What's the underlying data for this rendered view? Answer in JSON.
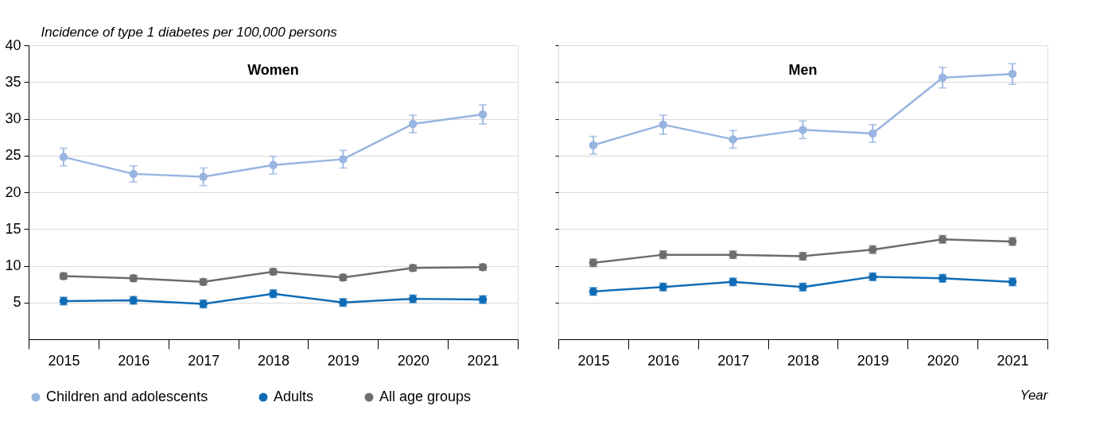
{
  "chart_data": [
    {
      "type": "line",
      "title": "Women",
      "ylabel": "Incidence of type 1 diabetes per 100,000 persons",
      "categories": [
        "2015",
        "2016",
        "2017",
        "2018",
        "2019",
        "2020",
        "2021"
      ],
      "ylim": [
        0,
        40
      ],
      "yticks": [
        5,
        10,
        15,
        20,
        25,
        30,
        35,
        40
      ],
      "grid": "y",
      "marker": "circle",
      "legend": "bottom",
      "series": [
        {
          "name": "Children and adolescents",
          "color": "#98b4e0",
          "values": [
            24.8,
            22.5,
            22.1,
            23.7,
            24.5,
            29.3,
            30.6
          ],
          "errors": [
            1.2,
            1.1,
            1.2,
            1.2,
            1.2,
            1.2,
            1.3
          ]
        },
        {
          "name": "Adults",
          "color": "#0f6cb6",
          "values": [
            5.2,
            5.3,
            4.8,
            6.2,
            5.0,
            5.5,
            5.4
          ],
          "errors": [
            0.5,
            0.5,
            0.5,
            0.5,
            0.5,
            0.5,
            0.5
          ]
        },
        {
          "name": "All age groups",
          "color": "#6d6d6d",
          "values": [
            8.6,
            8.3,
            7.8,
            9.2,
            8.4,
            9.7,
            9.8
          ],
          "errors": [
            0.4,
            0.4,
            0.4,
            0.4,
            0.4,
            0.4,
            0.4
          ]
        }
      ]
    },
    {
      "type": "line",
      "title": "Men",
      "xlabel": "Year",
      "categories": [
        "2015",
        "2016",
        "2017",
        "2018",
        "2019",
        "2020",
        "2021"
      ],
      "ylim": [
        0,
        40
      ],
      "yticks": [
        5,
        10,
        15,
        20,
        25,
        30,
        35,
        40
      ],
      "grid": "y",
      "marker": "circle",
      "tick_labels": "x",
      "series": [
        {
          "color": "#98b4e0",
          "values": [
            26.4,
            29.2,
            27.2,
            28.5,
            28.0,
            35.6,
            36.1
          ],
          "errors": [
            1.2,
            1.3,
            1.2,
            1.2,
            1.2,
            1.4,
            1.4
          ]
        },
        {
          "color": "#0f6cb6",
          "values": [
            6.5,
            7.1,
            7.8,
            7.1,
            8.5,
            8.3,
            7.8
          ],
          "errors": [
            0.5,
            0.5,
            0.5,
            0.5,
            0.5,
            0.5,
            0.5
          ]
        },
        {
          "color": "#6d6d6d",
          "values": [
            10.4,
            11.5,
            11.5,
            11.3,
            12.2,
            13.6,
            13.3
          ],
          "errors": [
            0.5,
            0.5,
            0.5,
            0.5,
            0.5,
            0.5,
            0.5
          ]
        }
      ]
    }
  ]
}
